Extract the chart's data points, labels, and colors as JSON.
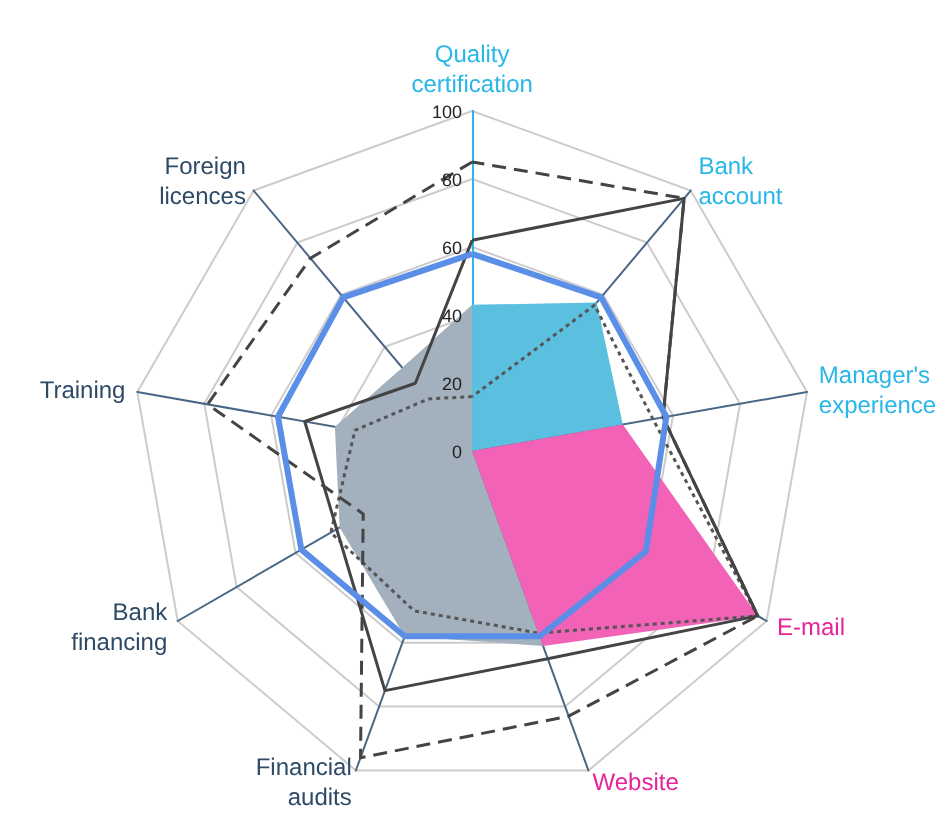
{
  "chart_data": {
    "type": "radar",
    "categories": [
      "Quality certification",
      "Bank account",
      "Manager's experience",
      "E-mail",
      "Website",
      "Financial audits",
      "Bank financing",
      "Training",
      "Foreign licences"
    ],
    "colors": [
      "#29b6e8",
      "#29b6e8",
      "#29b6e8",
      "#e5249a",
      "#e5249a",
      "#2d4a66",
      "#2d4a66",
      "#2d4a66",
      "#2d4a66"
    ],
    "ylim": [
      0,
      100
    ],
    "yticks": [
      0,
      20,
      40,
      60,
      80,
      100
    ],
    "grid": true,
    "marker": "none",
    "series": [
      {
        "type": "area",
        "color": "#a3b0bd",
        "values": [
          43,
          0,
          0,
          0,
          61,
          58,
          45,
          41,
          32
        ]
      },
      {
        "type": "area",
        "color": "#5bbfdf",
        "values": [
          43,
          57,
          45,
          0,
          0,
          0,
          0,
          0,
          0
        ]
      },
      {
        "type": "area",
        "color": "#f262b6",
        "values": [
          0,
          0,
          45,
          97,
          61,
          0,
          0,
          0,
          0
        ]
      },
      {
        "type": "radar",
        "color": "#555555",
        "line_style": "dotted",
        "values": [
          16,
          56,
          54,
          97,
          57,
          50,
          48,
          35,
          20
        ]
      },
      {
        "type": "radar",
        "color": "#444444",
        "line_style": "dashed",
        "values": [
          85,
          97,
          57,
          97,
          83,
          96,
          37,
          79,
          74
        ]
      },
      {
        "type": "radar",
        "color": "#444444",
        "line_style": "solid",
        "values": [
          62,
          97,
          57,
          97,
          65,
          75,
          46,
          50,
          26
        ]
      },
      {
        "type": "radar",
        "color": "#5b8ee6",
        "line_style": "solid",
        "values": [
          58,
          59,
          58,
          59,
          58,
          58,
          58,
          58,
          59
        ]
      }
    ]
  }
}
